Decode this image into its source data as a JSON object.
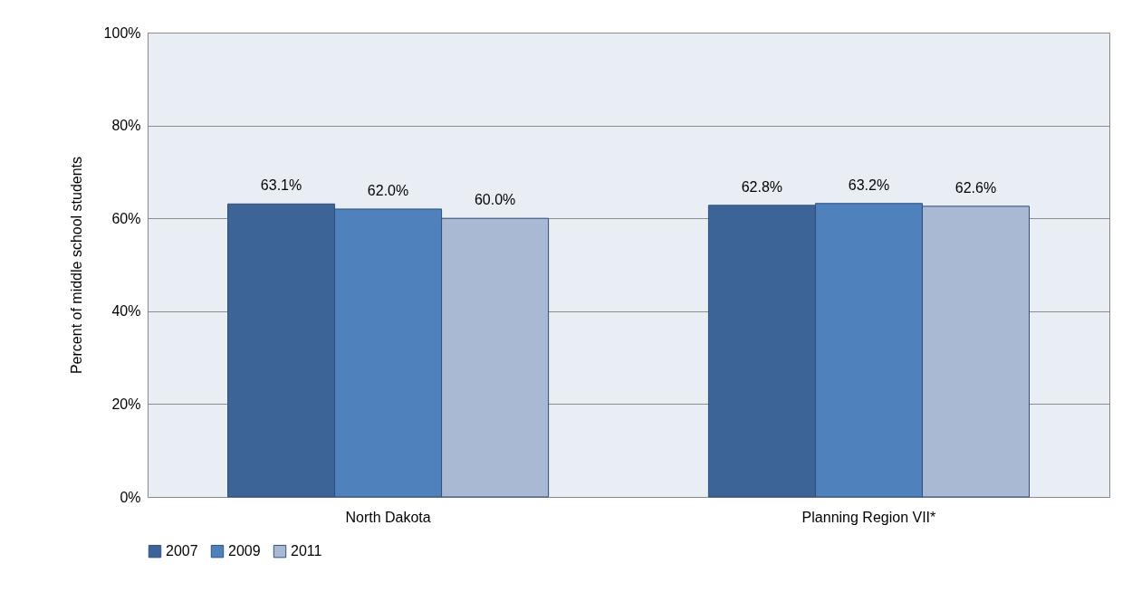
{
  "chart_data": {
    "type": "bar",
    "ylabel": "Percent of middle school students",
    "categories": [
      "North Dakota",
      "Planning Region VII*"
    ],
    "series": [
      {
        "name": "2007",
        "color": "#3d6497",
        "values": [
          63.1,
          62.8
        ],
        "value_labels": [
          "63.1%",
          "62.8%"
        ]
      },
      {
        "name": "2009",
        "color": "#4f81bd",
        "values": [
          62.0,
          63.2
        ],
        "value_labels": [
          "62.0%",
          "63.2%"
        ]
      },
      {
        "name": "2011",
        "color": "#a9b9d4",
        "values": [
          60.0,
          62.6
        ],
        "value_labels": [
          "60.0%",
          "62.6%"
        ]
      }
    ],
    "ylim": [
      0,
      100
    ],
    "yticks": [
      {
        "value": 0,
        "label": "0%"
      },
      {
        "value": 20,
        "label": "20%"
      },
      {
        "value": 40,
        "label": "40%"
      },
      {
        "value": 60,
        "label": "60%"
      },
      {
        "value": 80,
        "label": "80%"
      },
      {
        "value": 100,
        "label": "100%"
      }
    ],
    "grid": "y",
    "legend": "bottom"
  }
}
